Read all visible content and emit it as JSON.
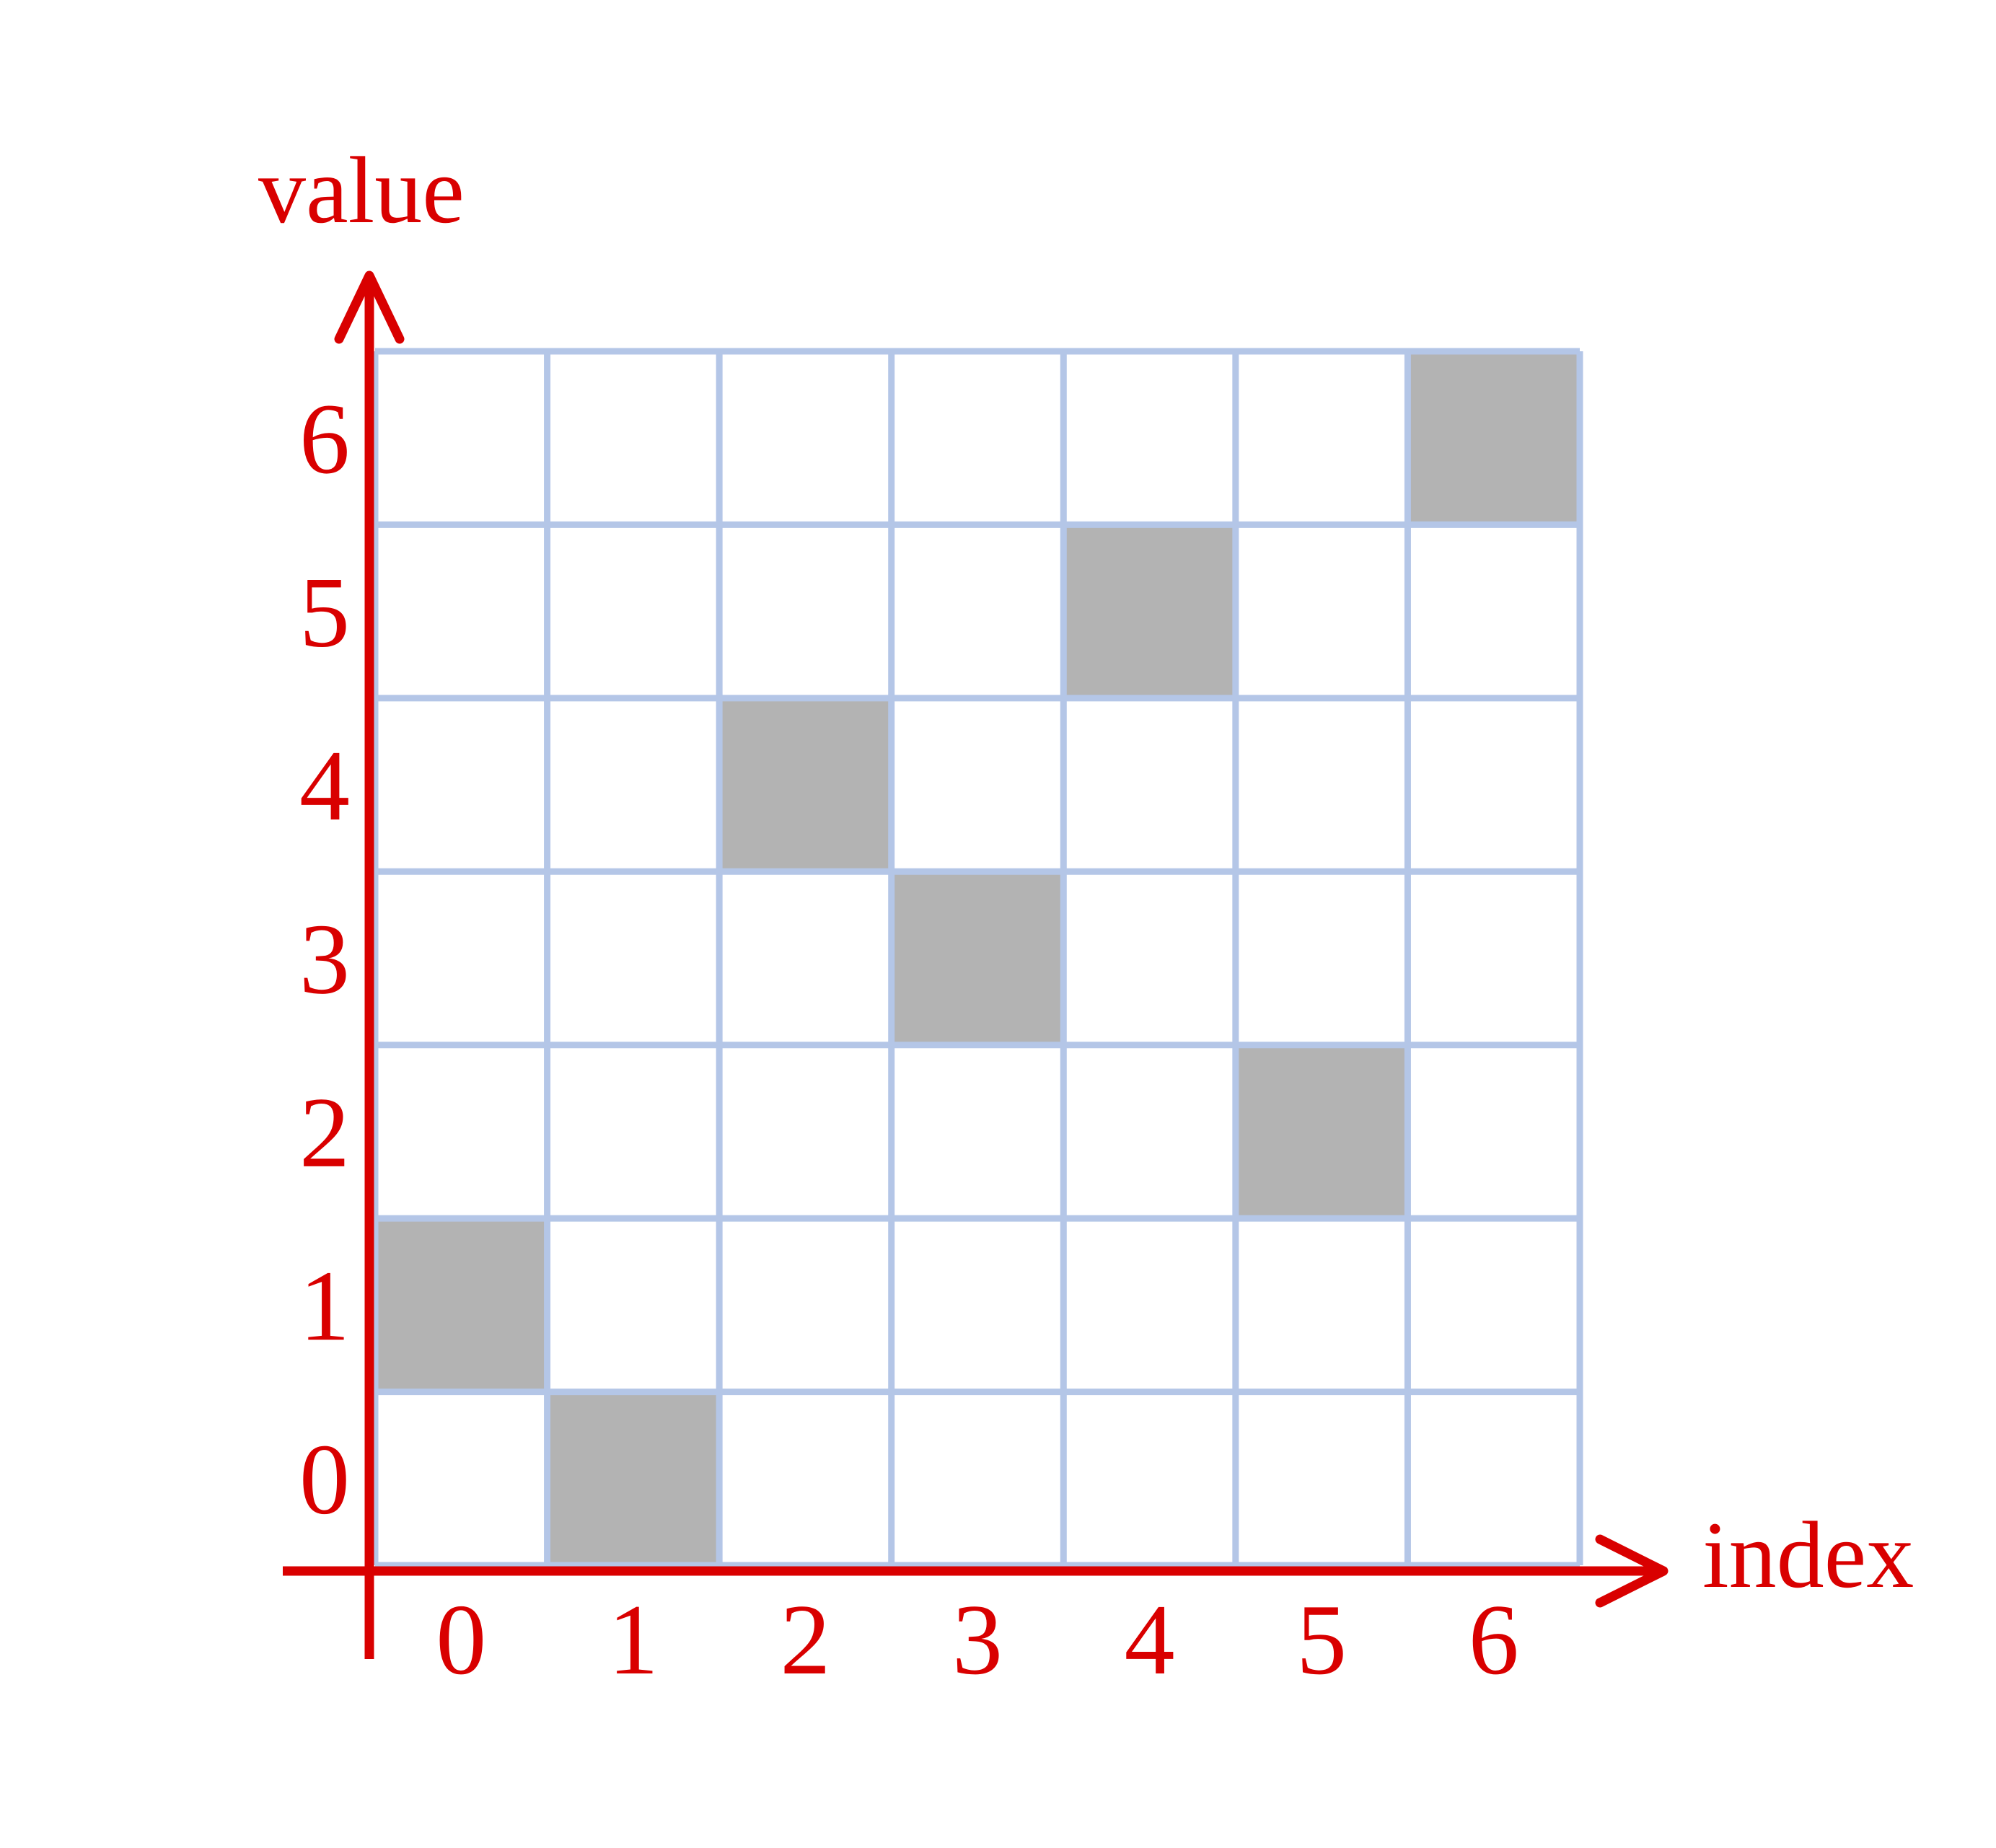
{
  "chart_data": {
    "type": "heatmap",
    "xlabel": "index",
    "ylabel": "value",
    "x_ticks": [
      "0",
      "1",
      "2",
      "3",
      "4",
      "5",
      "6"
    ],
    "y_ticks": [
      "0",
      "1",
      "2",
      "3",
      "4",
      "5",
      "6"
    ],
    "xlim": [
      0,
      6
    ],
    "ylim": [
      0,
      6
    ],
    "grid": true,
    "points": [
      {
        "index": 0,
        "value": 1
      },
      {
        "index": 1,
        "value": 0
      },
      {
        "index": 2,
        "value": 4
      },
      {
        "index": 3,
        "value": 3
      },
      {
        "index": 4,
        "value": 5
      },
      {
        "index": 5,
        "value": 2
      },
      {
        "index": 6,
        "value": 6
      }
    ]
  },
  "colors": {
    "axis": "#d90000",
    "grid": "#b4c6e7",
    "filled_cell": "#b3b3b3",
    "background": "#ffffff"
  }
}
